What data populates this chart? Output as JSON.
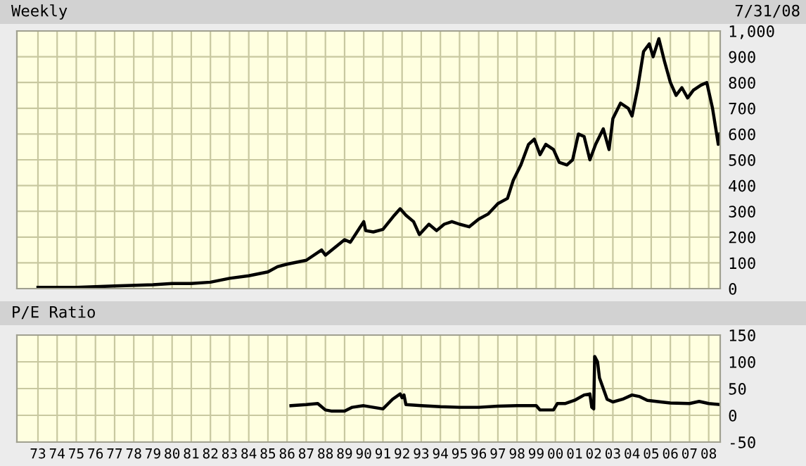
{
  "chart_data": [
    {
      "type": "line",
      "title": "Weekly",
      "annotations": [
        "7/31/08"
      ],
      "series": [
        {
          "color": "#000000",
          "x": [
            1973.0,
            1975.0,
            1977.0,
            1979.0,
            1980.0,
            1981.0,
            1982.0,
            1983.0,
            1984.0,
            1985.0,
            1985.5,
            1986.0,
            1987.0,
            1987.8,
            1988.0,
            1989.0,
            1989.3,
            1990.0,
            1990.1,
            1990.5,
            1991.0,
            1991.6,
            1991.9,
            1992.2,
            1992.6,
            1992.9,
            1993.4,
            1993.8,
            1994.2,
            1994.6,
            1995.0,
            1995.5,
            1996.0,
            1996.5,
            1997.0,
            1997.5,
            1997.8,
            1998.2,
            1998.6,
            1998.9,
            1999.2,
            1999.5,
            1999.9,
            2000.2,
            2000.6,
            2000.9,
            2001.2,
            2001.5,
            2001.8,
            2002.1,
            2002.5,
            2002.8,
            2003.0,
            2003.4,
            2003.8,
            2004.0,
            2004.3,
            2004.6,
            2004.9,
            2005.1,
            2005.4,
            2005.7,
            2006.0,
            2006.3,
            2006.6,
            2006.9,
            2007.2,
            2007.6,
            2007.9,
            2008.2,
            2008.5,
            2008.58
          ],
          "values": [
            5,
            5,
            10,
            15,
            20,
            20,
            25,
            40,
            50,
            65,
            85,
            95,
            110,
            150,
            130,
            190,
            180,
            260,
            225,
            220,
            230,
            285,
            310,
            285,
            260,
            210,
            250,
            225,
            250,
            260,
            250,
            240,
            270,
            290,
            330,
            350,
            420,
            480,
            560,
            580,
            520,
            560,
            540,
            490,
            480,
            500,
            600,
            590,
            500,
            560,
            620,
            540,
            660,
            720,
            700,
            670,
            780,
            920,
            950,
            900,
            970,
            880,
            800,
            750,
            780,
            740,
            770,
            790,
            800,
            700,
            560,
            600
          ]
        }
      ],
      "xlim": [
        1971.9,
        2008.6
      ],
      "xticks": [
        1973,
        1974,
        1975,
        1976,
        1977,
        1978,
        1979,
        1980,
        1981,
        1982,
        1983,
        1984,
        1985,
        1986,
        1987,
        1988,
        1989,
        1990,
        1991,
        1992,
        1993,
        1994,
        1995,
        1996,
        1997,
        1998,
        1999,
        2000,
        2001,
        2002,
        2003,
        2004,
        2005,
        2006,
        2007,
        2008
      ],
      "ylim": [
        0,
        1000
      ],
      "yticks": [
        0,
        100,
        200,
        300,
        400,
        500,
        600,
        700,
        800,
        900,
        {
          "value": 1000,
          "label": "1,000"
        }
      ],
      "tick_labels": "y",
      "grid": true,
      "legend": false
    },
    {
      "type": "line",
      "title": "P/E Ratio",
      "series": [
        {
          "color": "#000000",
          "x": [
            1986.2,
            1987.0,
            1987.6,
            1988.0,
            1988.3,
            1989.0,
            1989.4,
            1990.0,
            1990.5,
            1991.0,
            1991.5,
            1991.9,
            1992.0,
            1992.1,
            1992.2,
            1993.0,
            1994.0,
            1995.0,
            1996.0,
            1997.0,
            1998.0,
            1999.0,
            1999.2,
            1999.9,
            2000.1,
            2000.5,
            2001.0,
            2001.5,
            2001.8,
            2001.9,
            2002.0,
            2002.05,
            2002.2,
            2002.3,
            2002.5,
            2002.7,
            2003.0,
            2003.5,
            2004.0,
            2004.4,
            2004.8,
            2005.5,
            2006.0,
            2007.0,
            2007.5,
            2008.0,
            2008.58
          ],
          "values": [
            18,
            20,
            22,
            10,
            8,
            8,
            15,
            18,
            15,
            12,
            30,
            40,
            33,
            38,
            20,
            18,
            16,
            15,
            15,
            17,
            18,
            18,
            10,
            10,
            22,
            22,
            28,
            38,
            40,
            15,
            12,
            110,
            100,
            70,
            50,
            30,
            25,
            30,
            38,
            35,
            28,
            25,
            23,
            22,
            26,
            22,
            20
          ]
        }
      ],
      "xlim": [
        1971.9,
        2008.6
      ],
      "xticks": [
        {
          "value": 1973,
          "label": "73"
        },
        {
          "value": 1974,
          "label": "74"
        },
        {
          "value": 1975,
          "label": "75"
        },
        {
          "value": 1976,
          "label": "76"
        },
        {
          "value": 1977,
          "label": "77"
        },
        {
          "value": 1978,
          "label": "78"
        },
        {
          "value": 1979,
          "label": "79"
        },
        {
          "value": 1980,
          "label": "80"
        },
        {
          "value": 1981,
          "label": "81"
        },
        {
          "value": 1982,
          "label": "82"
        },
        {
          "value": 1983,
          "label": "83"
        },
        {
          "value": 1984,
          "label": "84"
        },
        {
          "value": 1985,
          "label": "85"
        },
        {
          "value": 1986,
          "label": "86"
        },
        {
          "value": 1987,
          "label": "87"
        },
        {
          "value": 1988,
          "label": "88"
        },
        {
          "value": 1989,
          "label": "89"
        },
        {
          "value": 1990,
          "label": "90"
        },
        {
          "value": 1991,
          "label": "91"
        },
        {
          "value": 1992,
          "label": "92"
        },
        {
          "value": 1993,
          "label": "93"
        },
        {
          "value": 1994,
          "label": "94"
        },
        {
          "value": 1995,
          "label": "95"
        },
        {
          "value": 1996,
          "label": "96"
        },
        {
          "value": 1997,
          "label": "97"
        },
        {
          "value": 1998,
          "label": "98"
        },
        {
          "value": 1999,
          "label": "99"
        },
        {
          "value": 2000,
          "label": "00"
        },
        {
          "value": 2001,
          "label": "01"
        },
        {
          "value": 2002,
          "label": "02"
        },
        {
          "value": 2003,
          "label": "03"
        },
        {
          "value": 2004,
          "label": "04"
        },
        {
          "value": 2005,
          "label": "05"
        },
        {
          "value": 2006,
          "label": "06"
        },
        {
          "value": 2007,
          "label": "07"
        },
        {
          "value": 2008,
          "label": "08"
        }
      ],
      "ylim": [
        -50,
        150
      ],
      "yticks": [
        -50,
        0,
        50,
        100,
        150
      ],
      "grid": true,
      "legend": false
    }
  ]
}
